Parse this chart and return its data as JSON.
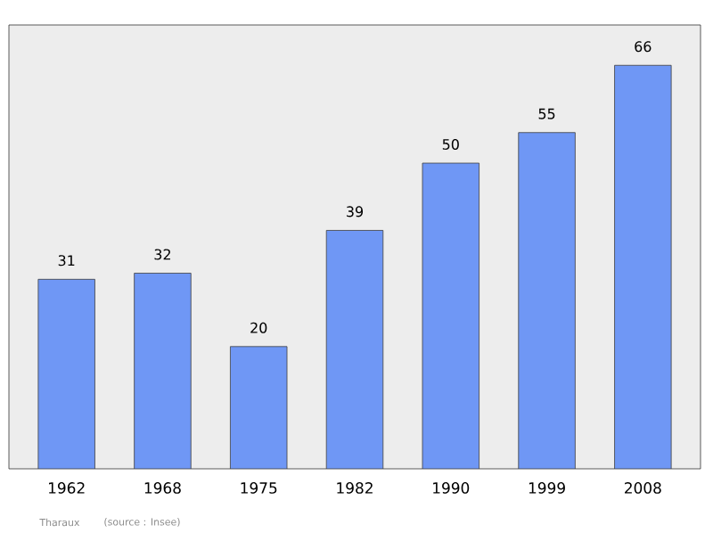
{
  "chart_data": {
    "type": "bar",
    "categories": [
      "1962",
      "1968",
      "1975",
      "1982",
      "1990",
      "1999",
      "2008"
    ],
    "values": [
      31,
      32,
      20,
      39,
      50,
      55,
      66
    ],
    "color": "#6f97f5",
    "data_labels": true,
    "grid": false,
    "tick_labels": "x",
    "annotations": [
      "Tharaux",
      "(source : Insee)"
    ]
  }
}
